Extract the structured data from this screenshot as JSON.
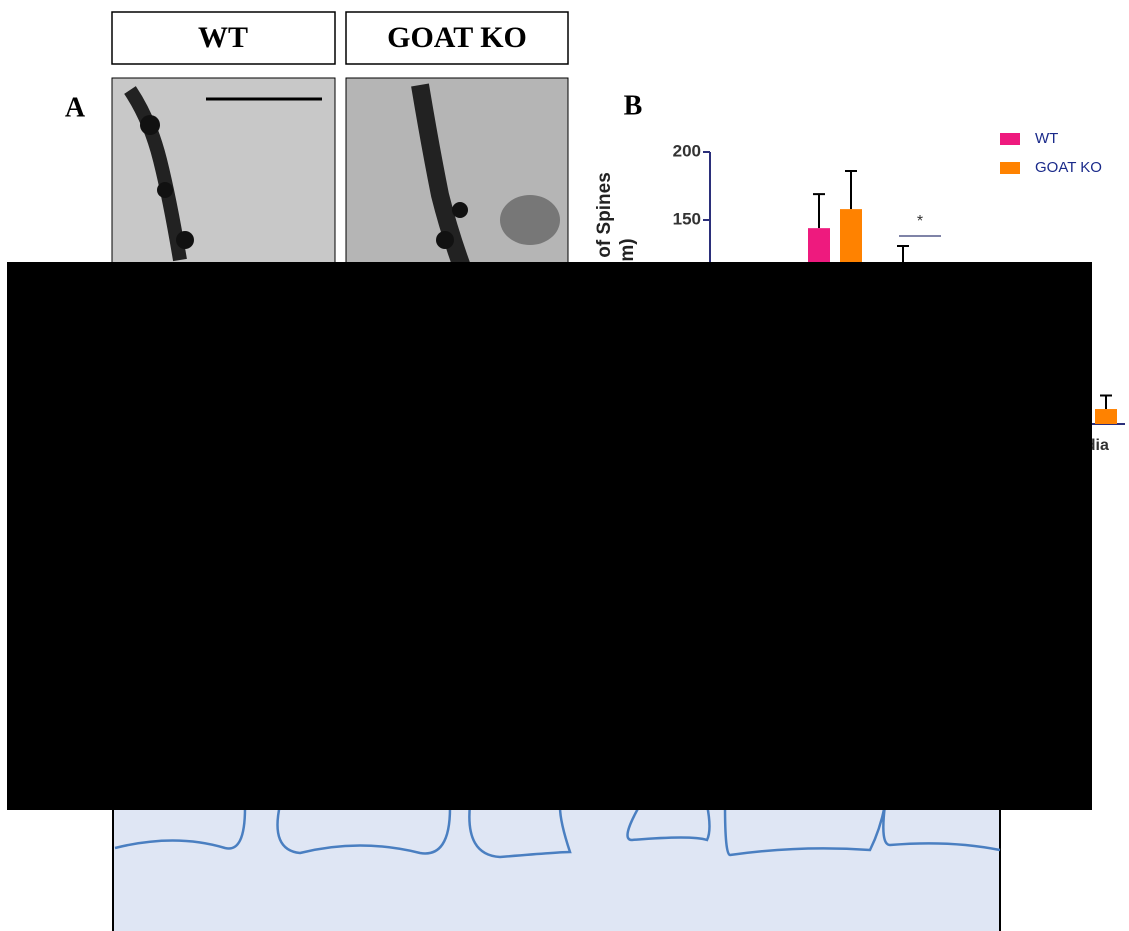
{
  "panels": {
    "a": {
      "label": "A",
      "headers": [
        "WT",
        "GOAT KO"
      ]
    },
    "b": {
      "label": "B"
    }
  },
  "chart_data": {
    "type": "bar",
    "ylabel_fragments": [
      "of Spines",
      "m)"
    ],
    "categories": [
      null,
      null,
      null,
      "odia"
    ],
    "series": [
      {
        "name": "WT",
        "color": "#ee1a7e",
        "values": [
          144,
          null,
          null,
          null
        ],
        "errors": [
          25,
          null,
          null,
          null
        ]
      },
      {
        "name": "GOAT KO",
        "color": "#ff8200",
        "values": [
          158,
          null,
          null,
          11
        ],
        "errors": [
          28,
          null,
          null,
          10
        ]
      }
    ],
    "ylim": [
      0,
      200
    ],
    "yticks": [
      150,
      200
    ],
    "annotation": "*",
    "legend": "upper right"
  }
}
